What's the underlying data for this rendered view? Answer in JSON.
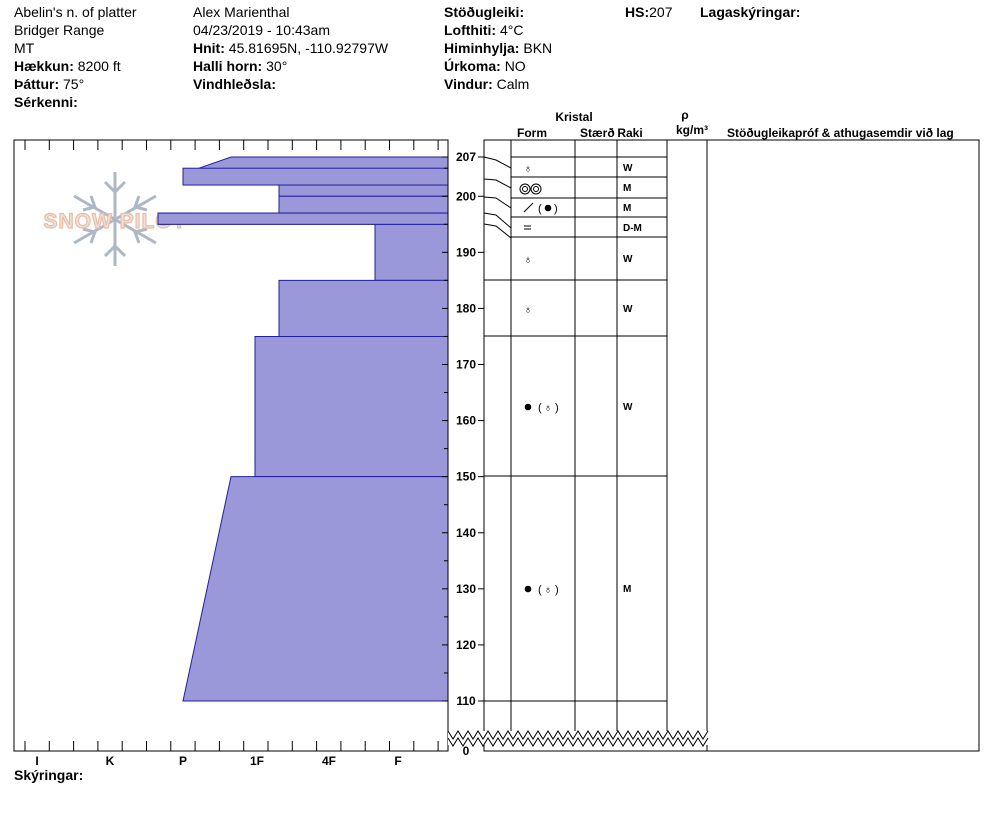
{
  "header": {
    "location": "Abelin's n. of platter",
    "range": "Bridger Range",
    "state": "MT",
    "elevation": {
      "label": "Hækkun:",
      "value": "8200 ft"
    },
    "aspect": {
      "label": "Þáttur:",
      "value": "75°"
    },
    "features": {
      "label": "Sérkenni:",
      "value": ""
    },
    "observer": "Alex Marienthal",
    "datetime": "04/23/2019 - 10:43am",
    "coords": {
      "label": "Hnit:",
      "value": "45.81695N, -110.92797W"
    },
    "slope": {
      "label": "Halli horn:",
      "value": "30°"
    },
    "wind_loading": {
      "label": "Vindhleðsla:",
      "value": ""
    },
    "stability": {
      "label": "Stöðugleiki:",
      "value": ""
    },
    "air_temp": {
      "label": "Lofthiti:",
      "value": "4°C"
    },
    "sky": {
      "label": "Himinhylja:",
      "value": "BKN"
    },
    "precip": {
      "label": "Úrkoma:",
      "value": "NO"
    },
    "wind": {
      "label": "Vindur:",
      "value": "Calm"
    },
    "hs": {
      "label": "HS:",
      "value": "207"
    },
    "layer_notes": {
      "label": "Lagaskýringar:",
      "value": ""
    }
  },
  "columns": {
    "crystal": "Kristal",
    "form": "Form",
    "size": "Stærð",
    "moisture": "Raki",
    "density_symbol": "ρ",
    "density_unit": "kg/m³",
    "stability_tests": "Stöðugleikapróf & athugasemdir við lag"
  },
  "logo_text": "SNOW PILOT",
  "hardness_labels": [
    "I",
    "K",
    "P",
    "1F",
    "4F",
    "F"
  ],
  "depth_ticks": [
    {
      "value": 207,
      "label": "207"
    },
    {
      "value": 200,
      "label": "200"
    },
    {
      "value": 190,
      "label": "190"
    },
    {
      "value": 180,
      "label": "180"
    },
    {
      "value": 170,
      "label": "170"
    },
    {
      "value": 160,
      "label": "160"
    },
    {
      "value": 150,
      "label": "150"
    },
    {
      "value": 140,
      "label": "140"
    },
    {
      "value": 130,
      "label": "130"
    },
    {
      "value": 120,
      "label": "120"
    },
    {
      "value": 110,
      "label": "110"
    },
    {
      "value": 0,
      "label": "0"
    }
  ],
  "chart_data": {
    "type": "bar",
    "title": "",
    "xlabel": "",
    "ylabel": "",
    "x_scale_labels": [
      "I",
      "K",
      "P",
      "1F",
      "4F",
      "F"
    ],
    "y_range": [
      0,
      207
    ],
    "layers": [
      {
        "top": 207,
        "bottom": 204,
        "hardness_from": "1F-",
        "hardness_to": "P",
        "form": "rounding faceted",
        "moisture": "W"
      },
      {
        "top": 204,
        "bottom": 200,
        "hardness_from": "1F+",
        "hardness_to": "1F+",
        "form": "melt-freeze rounded polycrystals",
        "moisture": "M"
      },
      {
        "top": 200,
        "bottom": 197,
        "hardness_from": "1F+",
        "hardness_to": "1F+",
        "form": "ice crust (melt-freeze)",
        "moisture": "M"
      },
      {
        "top": 197,
        "bottom": 195,
        "hardness_from": "P+",
        "hardness_to": "P+",
        "form": "crust",
        "moisture": "D-M"
      },
      {
        "top": 195,
        "bottom": 185,
        "hardness_from": "4F+",
        "hardness_to": "4F+",
        "form": "rounding faceted",
        "moisture": "W"
      },
      {
        "top": 185,
        "bottom": 175,
        "hardness_from": "1F+",
        "hardness_to": "1F+",
        "form": "rounding faceted",
        "moisture": "W"
      },
      {
        "top": 175,
        "bottom": 150,
        "hardness_from": "1F",
        "hardness_to": "1F",
        "form": "melt-freeze (rounding faceted)",
        "moisture": "W"
      },
      {
        "top": 150,
        "bottom": 110,
        "hardness_from": "1F-",
        "hardness_to": "P",
        "form": "melt-freeze (rounding faceted)",
        "moisture": "M"
      }
    ],
    "grid": false,
    "legend": "none"
  },
  "layers": [
    {
      "moisture": "W"
    },
    {
      "moisture": "M"
    },
    {
      "moisture": "M"
    },
    {
      "moisture": "D-M"
    },
    {
      "moisture": "W"
    },
    {
      "moisture": "W"
    },
    {
      "moisture": "W"
    },
    {
      "moisture": "M"
    }
  ],
  "footer": {
    "legend_label": "Skýringar:"
  },
  "colors": {
    "profile_fill": "#9a98d8",
    "profile_stroke": "#1f1fa0",
    "logo": "#e8b9a2",
    "snowflake": "#aab4c4"
  }
}
